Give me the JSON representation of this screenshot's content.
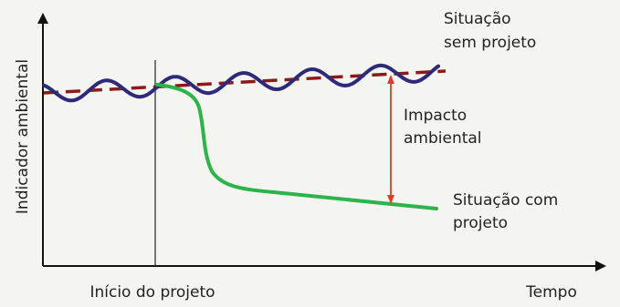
{
  "diagram": {
    "y_axis_label": "Indicador ambiental",
    "x_axis_label": "Tempo",
    "start_marker_label": "Início do projeto",
    "without_project_label": [
      "Situação",
      "sem projeto"
    ],
    "with_project_label": [
      "Situação com",
      "projeto"
    ],
    "impact_label": [
      "Impacto",
      "ambiental"
    ]
  },
  "colors": {
    "axis": "#111111",
    "trend_dashed": "#8b1a1a",
    "without_project_curve": "#2e2a7a",
    "with_project_curve": "#2db34a",
    "impact_arrow": "#e03a2a",
    "background": "#f4f4f1"
  }
}
